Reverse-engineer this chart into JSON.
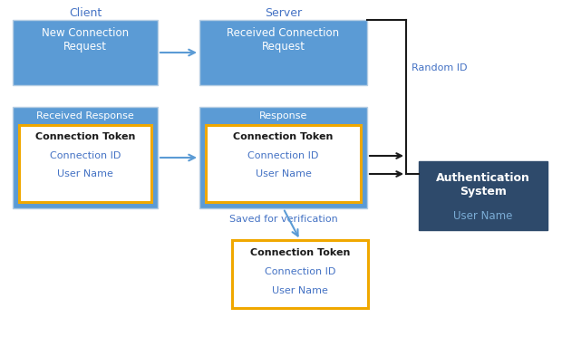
{
  "bg_color": "#ffffff",
  "box_blue_fill": "#5b9bd5",
  "box_blue_edge": "#b8cfe4",
  "box_dark_fill": "#2e4a6b",
  "box_dark_edge": "#2e4a6b",
  "box_white_fill": "#ffffff",
  "gold_edge": "#f0a800",
  "text_white": "#ffffff",
  "text_blue": "#4472c4",
  "text_black": "#1a1a1a",
  "arrow_blue": "#5b9bd5",
  "arrow_black": "#1a1a1a",
  "label_client": "Client",
  "label_server": "Server",
  "label_new_conn": "New Connection\nRequest",
  "label_recv_conn": "Received Connection\nRequest",
  "label_recv_resp": "Received Response",
  "label_response": "Response",
  "label_auth": "Authentication\nSystem",
  "label_conn_token": "Connection Token",
  "label_conn_id": "Connection ID",
  "label_user_name": "User Name",
  "label_random_id": "Random ID",
  "label_saved": "Saved for verification",
  "figsize": [
    6.2,
    3.72
  ],
  "dpi": 100
}
